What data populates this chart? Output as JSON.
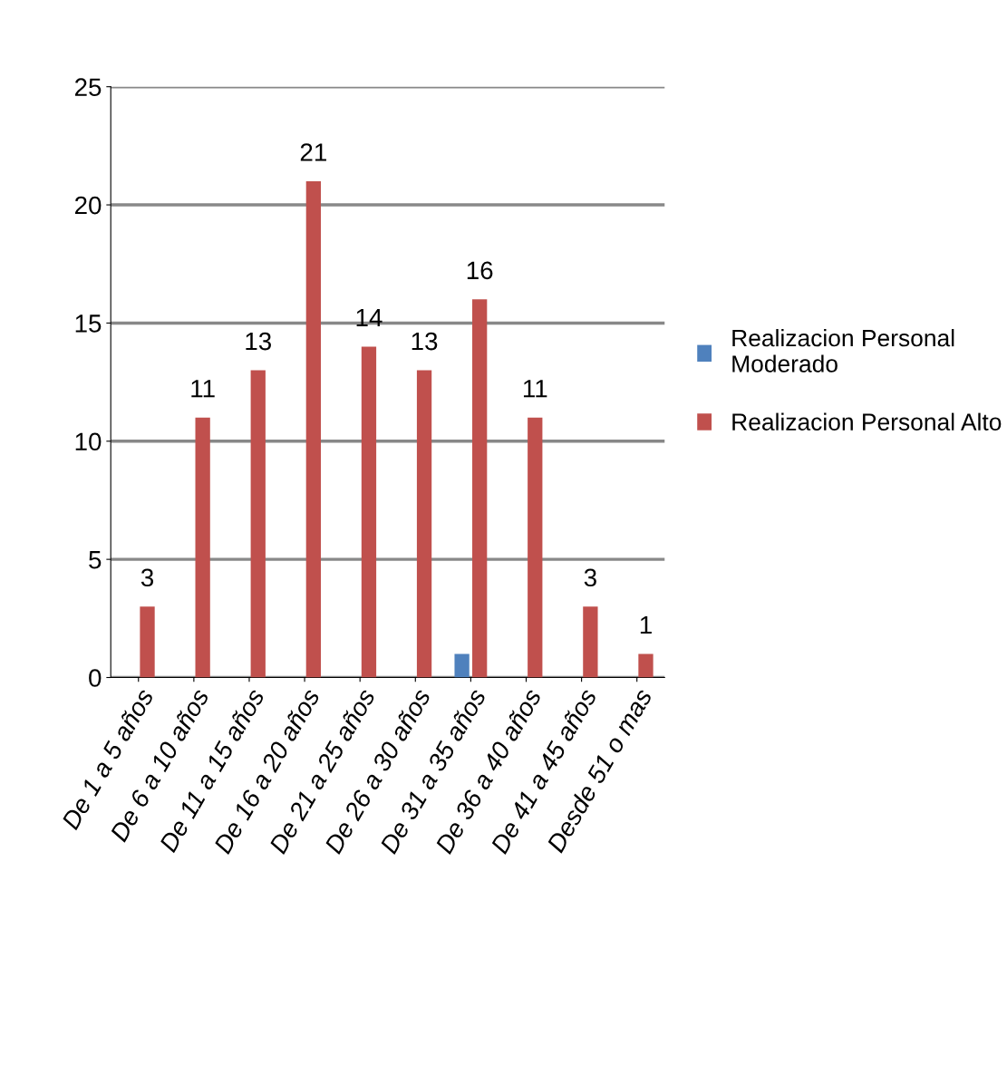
{
  "chart_data": {
    "type": "bar",
    "categories": [
      "De 1 a 5 años",
      "De 6 a 10 años",
      "De 11 a 15 años",
      "De 16 a 20 años",
      "De 21 a 25 años",
      "De 26 a 30 años",
      "De 31 a 35 años",
      "De 36 a 40 años",
      "De 41 a 45 años",
      "Desde 51 o mas"
    ],
    "series": [
      {
        "name": "Realizacion Personal Moderado",
        "color": "#4f81bd",
        "values": [
          0,
          0,
          0,
          0,
          0,
          0,
          1,
          0,
          0,
          0
        ]
      },
      {
        "name": "Realizacion Personal Alto",
        "color": "#c0504d",
        "values": [
          3,
          11,
          13,
          21,
          14,
          13,
          16,
          11,
          3,
          1
        ],
        "value_labels": [
          "3",
          "11",
          "13",
          "21",
          "14",
          "13",
          "16",
          "11",
          "3",
          "1"
        ]
      }
    ],
    "ylim": [
      0,
      25
    ],
    "yticks": [
      0,
      5,
      10,
      15,
      20,
      25
    ],
    "grid": "y",
    "legend": "right"
  }
}
